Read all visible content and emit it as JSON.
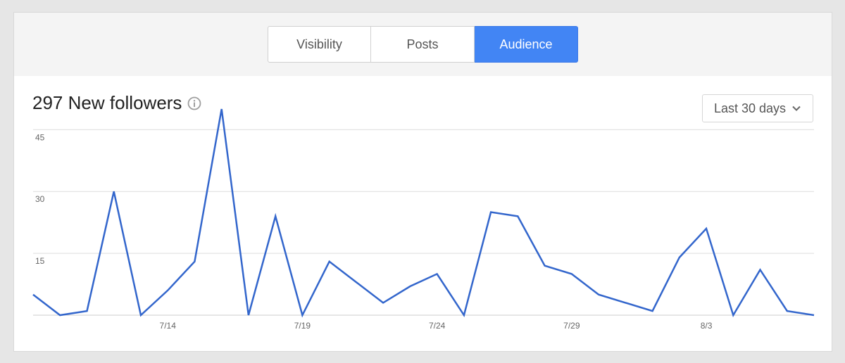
{
  "tabs": [
    {
      "label": "Visibility",
      "active": false
    },
    {
      "label": "Posts",
      "active": false
    },
    {
      "label": "Audience",
      "active": true
    }
  ],
  "headline": "297 New followers",
  "range": {
    "label": "Last 30 days"
  },
  "colors": {
    "line": "#3366cc",
    "accent": "#4285f4",
    "grid": "#dddddd"
  },
  "chart_data": {
    "type": "line",
    "grid": true,
    "ylim": [
      0,
      50
    ],
    "yticks": [
      15,
      30,
      45
    ],
    "xtick_labels": [
      {
        "index": 5,
        "label": "7/14"
      },
      {
        "index": 10,
        "label": "7/19"
      },
      {
        "index": 15,
        "label": "7/24"
      },
      {
        "index": 20,
        "label": "7/29"
      },
      {
        "index": 25,
        "label": "8/3"
      }
    ],
    "series": [
      {
        "values": [
          5,
          0,
          1,
          30,
          0,
          6,
          13,
          50,
          0,
          24,
          0,
          13,
          8,
          3,
          7,
          10,
          0,
          25,
          24,
          12,
          10,
          5,
          3,
          1,
          14,
          21,
          0,
          11,
          1,
          0
        ]
      }
    ]
  }
}
